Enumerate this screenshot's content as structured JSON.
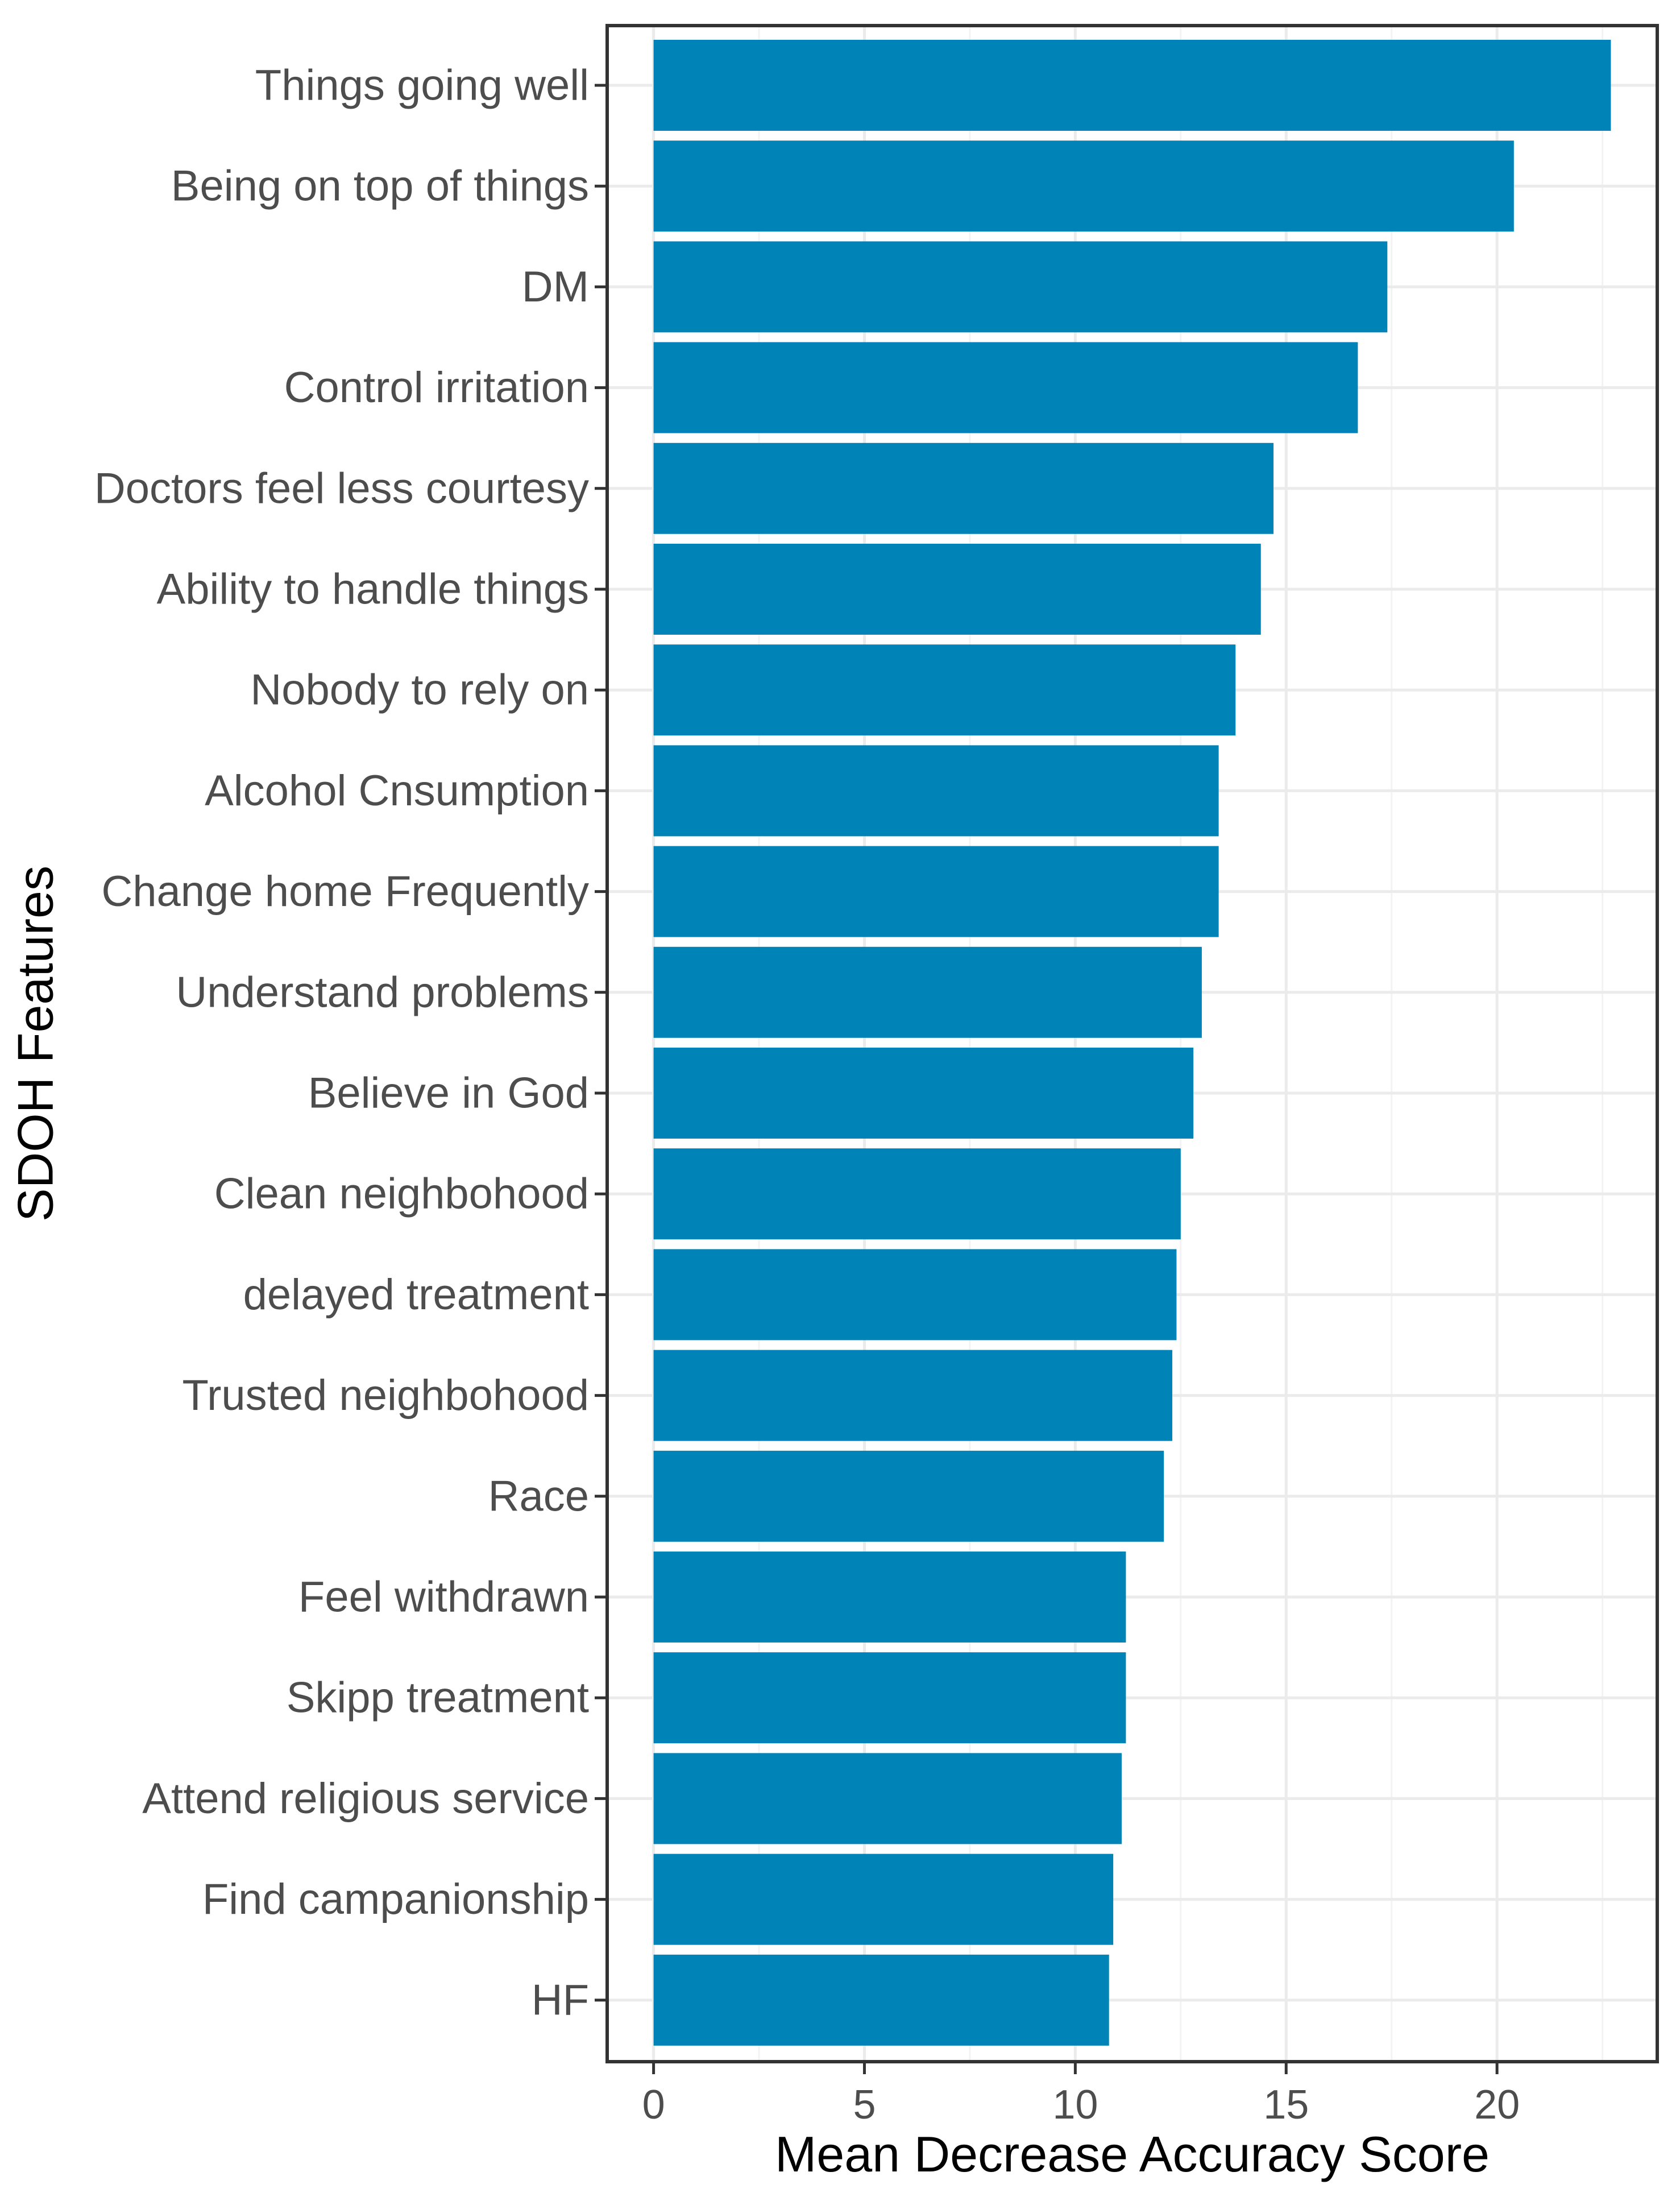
{
  "chart_data": {
    "type": "bar",
    "orientation": "horizontal",
    "title": "",
    "xlabel": "Mean Decrease Accuracy Score",
    "ylabel": "SDOH Features",
    "xlim": [
      -1.1,
      23.8
    ],
    "xticks": [
      0,
      5,
      10,
      15,
      20
    ],
    "grid": true,
    "bar_color": "#0083B7",
    "categories": [
      "Things going well",
      "Being on top of things",
      "DM",
      "Control irritation",
      "Doctors feel less courtesy",
      "Ability to handle things",
      "Nobody to rely on",
      "Alcohol Cnsumption",
      "Change home Frequently",
      "Understand problems",
      "Believe in God",
      "Clean neighbohood",
      "delayed treatment",
      "Trusted neighbohood",
      "Race",
      "Feel withdrawn",
      "Skipp treatment",
      "Attend religious service",
      "Find campanionship",
      "HF"
    ],
    "values": [
      22.7,
      20.4,
      17.4,
      16.7,
      14.7,
      14.4,
      13.8,
      13.4,
      13.4,
      13.0,
      12.8,
      12.5,
      12.4,
      12.3,
      12.1,
      11.2,
      11.2,
      11.1,
      10.9,
      10.8
    ]
  }
}
